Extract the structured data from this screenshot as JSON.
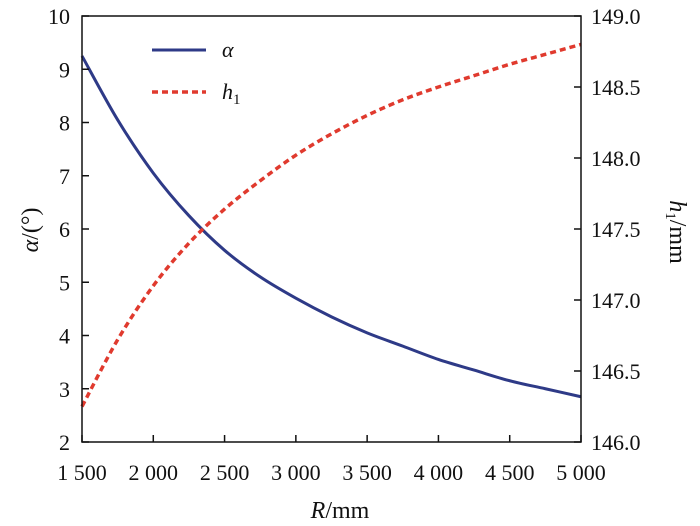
{
  "chart_data": {
    "type": "line",
    "xlabel": {
      "var": "R",
      "unit": "/mm"
    },
    "ylabel_left": {
      "var": "α",
      "unit": "/(°)"
    },
    "ylabel_right": {
      "var": "h",
      "sub": "1",
      "unit": "/mm"
    },
    "xlim": [
      1500,
      5000
    ],
    "ylim_left": [
      2,
      10
    ],
    "ylim_right": [
      146.0,
      149.0
    ],
    "x_ticks": [
      1500,
      2000,
      2500,
      3000,
      3500,
      4000,
      4500,
      5000
    ],
    "x_tick_labels": [
      "1 500",
      "2 000",
      "2 500",
      "3 000",
      "3 500",
      "4 000",
      "4 500",
      "5 000"
    ],
    "y_left_ticks": [
      2,
      3,
      4,
      5,
      6,
      7,
      8,
      9,
      10
    ],
    "y_left_tick_labels": [
      "2",
      "3",
      "4",
      "5",
      "6",
      "7",
      "8",
      "9",
      "10"
    ],
    "y_right_ticks": [
      146.0,
      146.5,
      147.0,
      147.5,
      148.0,
      148.5,
      149.0
    ],
    "y_right_tick_labels": [
      "146.0",
      "146.5",
      "147.0",
      "147.5",
      "148.0",
      "148.5",
      "149.0"
    ],
    "grid": false,
    "legend_position": "top-left",
    "series": [
      {
        "name": "α",
        "axis": "left",
        "style": "solid",
        "color": "#2e3a87",
        "x": [
          1500,
          1750,
          2000,
          2250,
          2500,
          2750,
          3000,
          3250,
          3500,
          3750,
          4000,
          4250,
          4500,
          4750,
          5000
        ],
        "y": [
          9.25,
          8.05,
          7.05,
          6.25,
          5.6,
          5.1,
          4.7,
          4.35,
          4.05,
          3.8,
          3.55,
          3.35,
          3.15,
          3.0,
          2.85
        ]
      },
      {
        "name": "h",
        "name_sub": "1",
        "axis": "right",
        "style": "dashed",
        "color": "#e03a2e",
        "x": [
          1500,
          1750,
          2000,
          2250,
          2500,
          2750,
          3000,
          3250,
          3500,
          3750,
          4000,
          4250,
          4500,
          4750,
          5000
        ],
        "y": [
          146.25,
          146.72,
          147.1,
          147.4,
          147.64,
          147.84,
          148.02,
          148.17,
          148.3,
          148.41,
          148.5,
          148.58,
          148.66,
          148.73,
          148.8
        ]
      }
    ]
  }
}
